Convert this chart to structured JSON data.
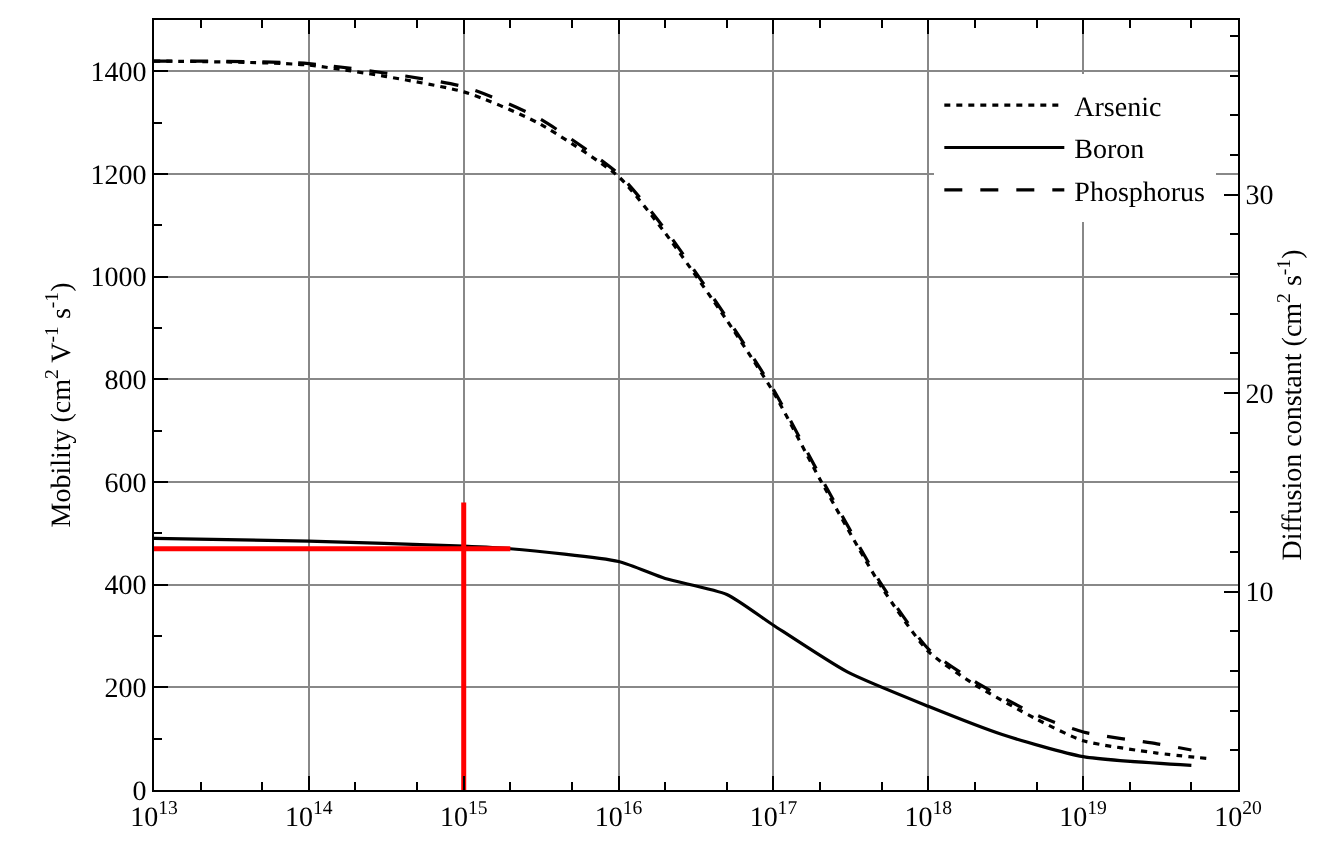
{
  "chart_data": {
    "type": "line",
    "xlabel": null,
    "ylabel": "Mobility (cm$^{2}$ V$^{-1}$ s$^{-1}$)",
    "y2label": "Diffusion constant (cm$^{2}$ s$^{-1}$)",
    "log": "x",
    "grid": true,
    "legend": "top right",
    "xlim": [
      10000000000000.0,
      1e+20
    ],
    "xticks": [
      {
        "value": 10000000000000.0,
        "label": "10$^{13}$"
      },
      {
        "value": 100000000000000.0,
        "label": "10$^{14}$"
      },
      {
        "value": 1000000000000000.0,
        "label": "10$^{15}$"
      },
      {
        "value": 1e+16,
        "label": "10$^{16}$"
      },
      {
        "value": 1e+17,
        "label": "10$^{17}$"
      },
      {
        "value": 1e+18,
        "label": "10$^{18}$"
      },
      {
        "value": 1e+19,
        "label": "10$^{19}$"
      },
      {
        "value": 1e+20,
        "label": "10$^{20}$"
      }
    ],
    "ylim": [
      0,
      1500
    ],
    "yticks": [
      0,
      200,
      400,
      600,
      800,
      1000,
      1200,
      1400
    ],
    "y2lim": [
      0,
      38.8
    ],
    "y2ticks": [
      10,
      20,
      30
    ],
    "series": [
      {
        "name": "Arsenic",
        "color": "#000000",
        "line_style": "dotted",
        "x": [
          10000000000000.0,
          100000000000000.0,
          1000000000000000.0,
          3000000000000000.0,
          1e+16,
          2e+16,
          5e+16,
          1e+17,
          2e+17,
          5e+17,
          1e+18,
          2e+18,
          5e+18,
          1e+19,
          3e+19,
          6.5e+19
        ],
        "values": [
          1420,
          1412,
          1360,
          1300,
          1195,
          1085,
          915,
          775,
          605,
          395,
          270,
          205,
          138,
          96,
          72,
          61
        ]
      },
      {
        "name": "Boron",
        "color": "#000000",
        "line_style": "solid",
        "x": [
          10000000000000.0,
          100000000000000.0,
          1000000000000000.0,
          2000000000000000.0,
          1e+16,
          2e+16,
          5e+16,
          1e+17,
          3e+17,
          1e+18,
          3e+18,
          1e+19,
          5e+19
        ],
        "values": [
          490,
          485,
          475,
          470,
          445,
          412,
          381,
          321,
          230,
          163,
          108,
          65,
          48
        ]
      },
      {
        "name": "Phosphorus",
        "color": "#000000",
        "line_style": "dashed",
        "x": [
          10000000000000.0,
          100000000000000.0,
          1000000000000000.0,
          3000000000000000.0,
          1e+16,
          2e+16,
          5e+16,
          1e+17,
          2e+17,
          5e+17,
          1e+18,
          2e+18,
          5e+18,
          1e+19,
          3e+19,
          5e+19
        ],
        "values": [
          1420,
          1415,
          1370,
          1310,
          1200,
          1092,
          920,
          780,
          612,
          400,
          275,
          211,
          146,
          113,
          90,
          78
        ]
      },
      {
        "color": "#ff0000",
        "line_style": "solid",
        "x": [
          10000000000000.0,
          2000000000000000.0
        ],
        "values": [
          470,
          470
        ]
      },
      {
        "color": "#ff0000",
        "line_style": "solid",
        "x": [
          1000000000000000.0,
          1000000000000000.0
        ],
        "values": [
          0,
          560
        ]
      }
    ]
  }
}
